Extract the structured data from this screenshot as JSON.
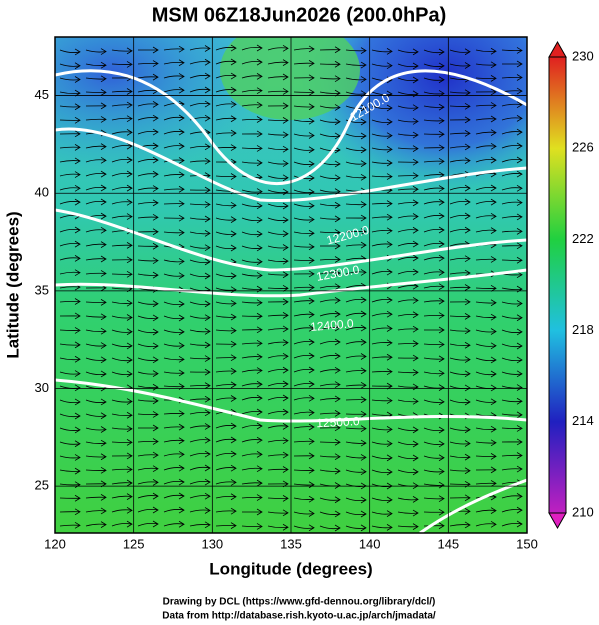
{
  "chart_data": {
    "type": "map",
    "title": "MSM 06Z18Jun2026 (200.0hPa)",
    "xlabel": "Longitude (degrees)",
    "ylabel": "Latitude  (degrees)",
    "xlim": [
      120,
      150
    ],
    "xticks": [
      120,
      125,
      130,
      135,
      140,
      145,
      150
    ],
    "ylim": [
      22.6,
      48
    ],
    "yticks": [
      25,
      30,
      35,
      40,
      45
    ],
    "grid": true,
    "colorbar": {
      "lim": [
        210,
        230
      ],
      "ticks": [
        210,
        214,
        218,
        222,
        226,
        230
      ]
    },
    "contours": [
      {
        "value": 12100,
        "label": "12100.0"
      },
      {
        "value": 12200,
        "label": "12200.0"
      },
      {
        "value": 12300,
        "label": "12300.0"
      },
      {
        "value": 12400,
        "label": "12400.0"
      },
      {
        "value": 12500,
        "label": "12500.0"
      }
    ]
  },
  "credits": [
    "Drawing by DCL (https://www.gfd-dennou.org/library/dcl/)",
    "Data from http://database.rish.kyoto-u.ac.jp/arch/jmadata/"
  ]
}
